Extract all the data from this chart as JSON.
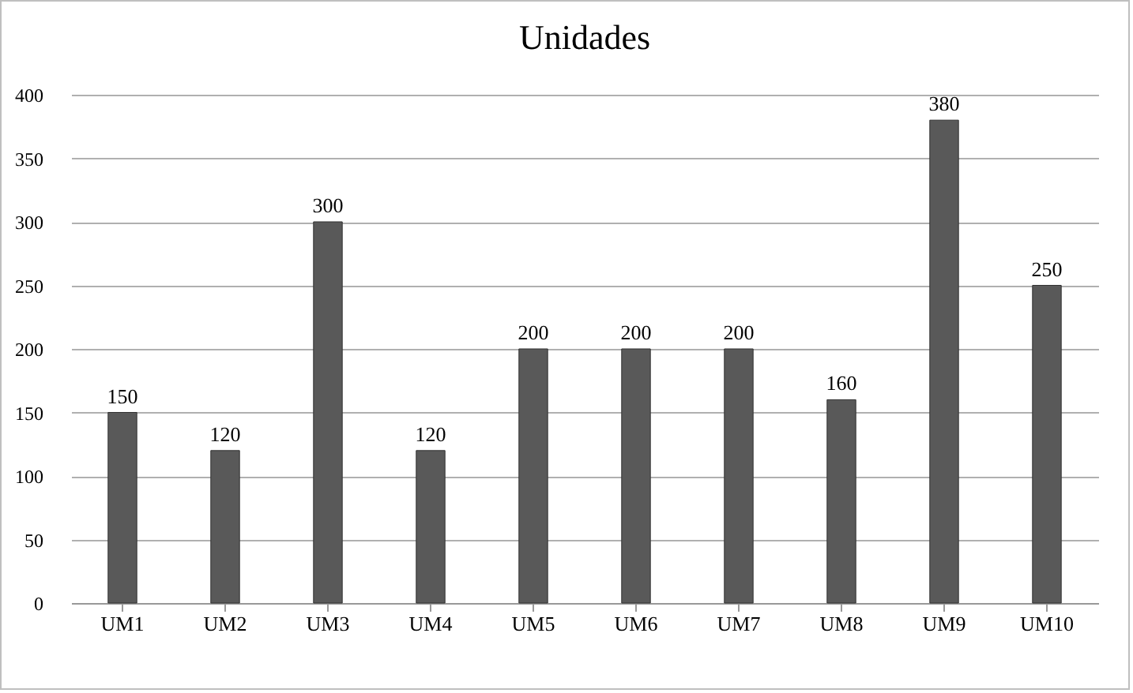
{
  "chart_data": {
    "type": "bar",
    "title": "Unidades",
    "categories": [
      "UM1",
      "UM2",
      "UM3",
      "UM4",
      "UM5",
      "UM6",
      "UM7",
      "UM8",
      "UM9",
      "UM10"
    ],
    "values": [
      150,
      120,
      300,
      120,
      200,
      200,
      200,
      160,
      380,
      250
    ],
    "color": "#595959",
    "ylim": [
      0,
      400
    ],
    "yticks": [
      0,
      50,
      100,
      150,
      200,
      250,
      300,
      350,
      400
    ],
    "grid": "y",
    "data_labels": true
  }
}
